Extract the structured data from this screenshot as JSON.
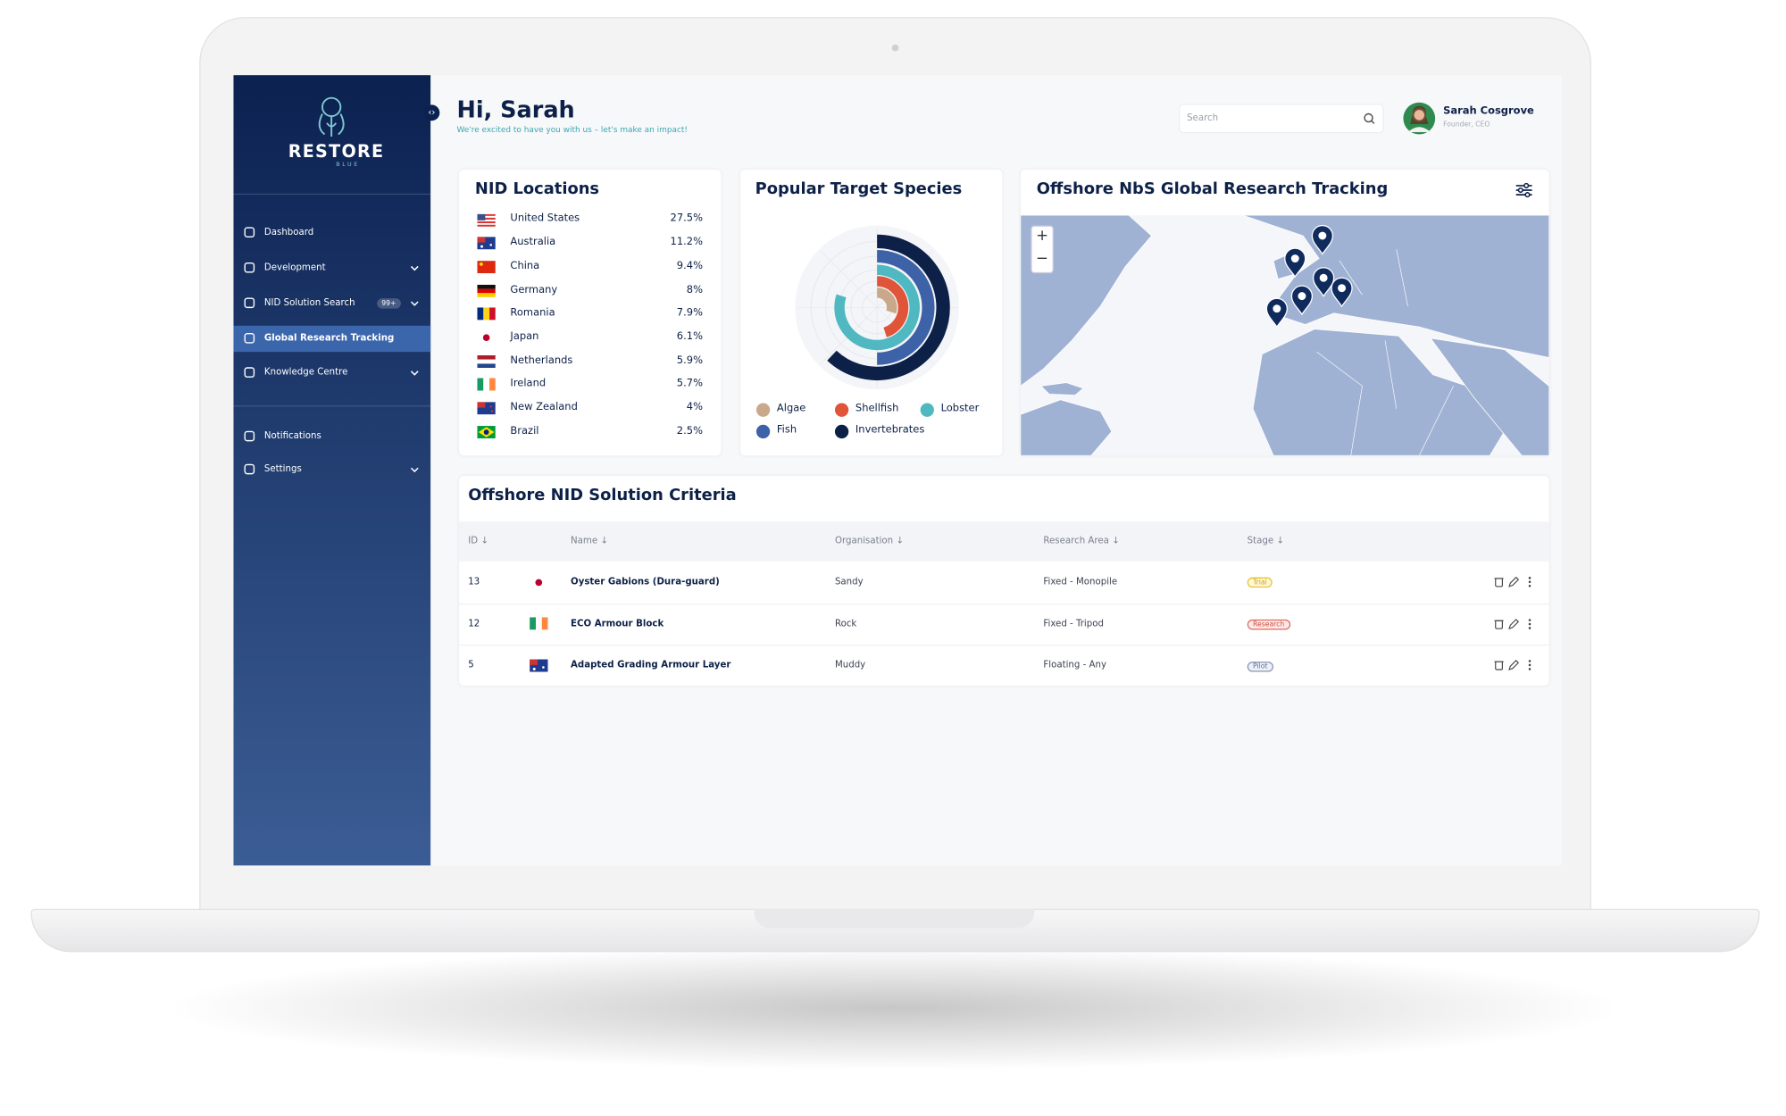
{
  "sidebar": {
    "brand": "RESTORE",
    "brand_sub": "BLUE",
    "nav": [
      "Dashboard",
      "Development",
      "NID Solution Search",
      "Global Research Tracking",
      "Knowledge Centre"
    ],
    "badge": "99+",
    "nav_bottom": [
      "Notifications",
      "Settings"
    ]
  },
  "header": {
    "greeting": "Hi, Sarah",
    "subtitle": "We're excited to have you with us – let's make an impact!",
    "search_placeholder": "Search",
    "user_name": "Sarah Cosgrove",
    "user_role": "Founder, CEO"
  },
  "locations": {
    "title": "NID Locations",
    "rows": [
      {
        "country": "United States",
        "share": "27.5%"
      },
      {
        "country": "Australia",
        "share": "11.2%"
      },
      {
        "country": "China",
        "share": "9.4%"
      },
      {
        "country": "Germany",
        "share": "8%"
      },
      {
        "country": "Romania",
        "share": "7.9%"
      },
      {
        "country": "Japan",
        "share": "6.1%"
      },
      {
        "country": "Netherlands",
        "share": "5.9%"
      },
      {
        "country": "Ireland",
        "share": "5.7%"
      },
      {
        "country": "New Zealand",
        "share": "4%"
      },
      {
        "country": "Brazil",
        "share": "2.5%"
      }
    ]
  },
  "chart_data": {
    "type": "radial-bar",
    "title": "Popular Target Species",
    "categories": [
      "Algae",
      "Shellfish",
      "Lobster",
      "Fish",
      "Invertebrates"
    ],
    "values": [
      30,
      45,
      80,
      50,
      62
    ],
    "colors": [
      "#c9a98a",
      "#e0553a",
      "#4fb8c0",
      "#3d62a8",
      "#0d2148"
    ],
    "ylim": [
      0,
      100
    ]
  },
  "map": {
    "title": "Offshore NbS Global Research Tracking",
    "zoom_in": "+",
    "zoom_out": "−"
  },
  "table": {
    "title": "Offshore NID Solution Criteria",
    "headers": [
      "ID ↓",
      "Name ↓",
      "Organisation ↓",
      "Research Area ↓",
      "Stage ↓"
    ],
    "rows": [
      [
        "13",
        "Oyster Gabions (Dura-guard)",
        "Sandy",
        "Fixed - Monopile",
        "Trial"
      ],
      [
        "12",
        "ECO Armour Block",
        "Rock",
        "Fixed - Tripod",
        "Research"
      ],
      [
        "5",
        "Adapted Grading Armour Layer",
        "Muddy",
        "Floating - Any",
        "Pilot"
      ]
    ]
  }
}
